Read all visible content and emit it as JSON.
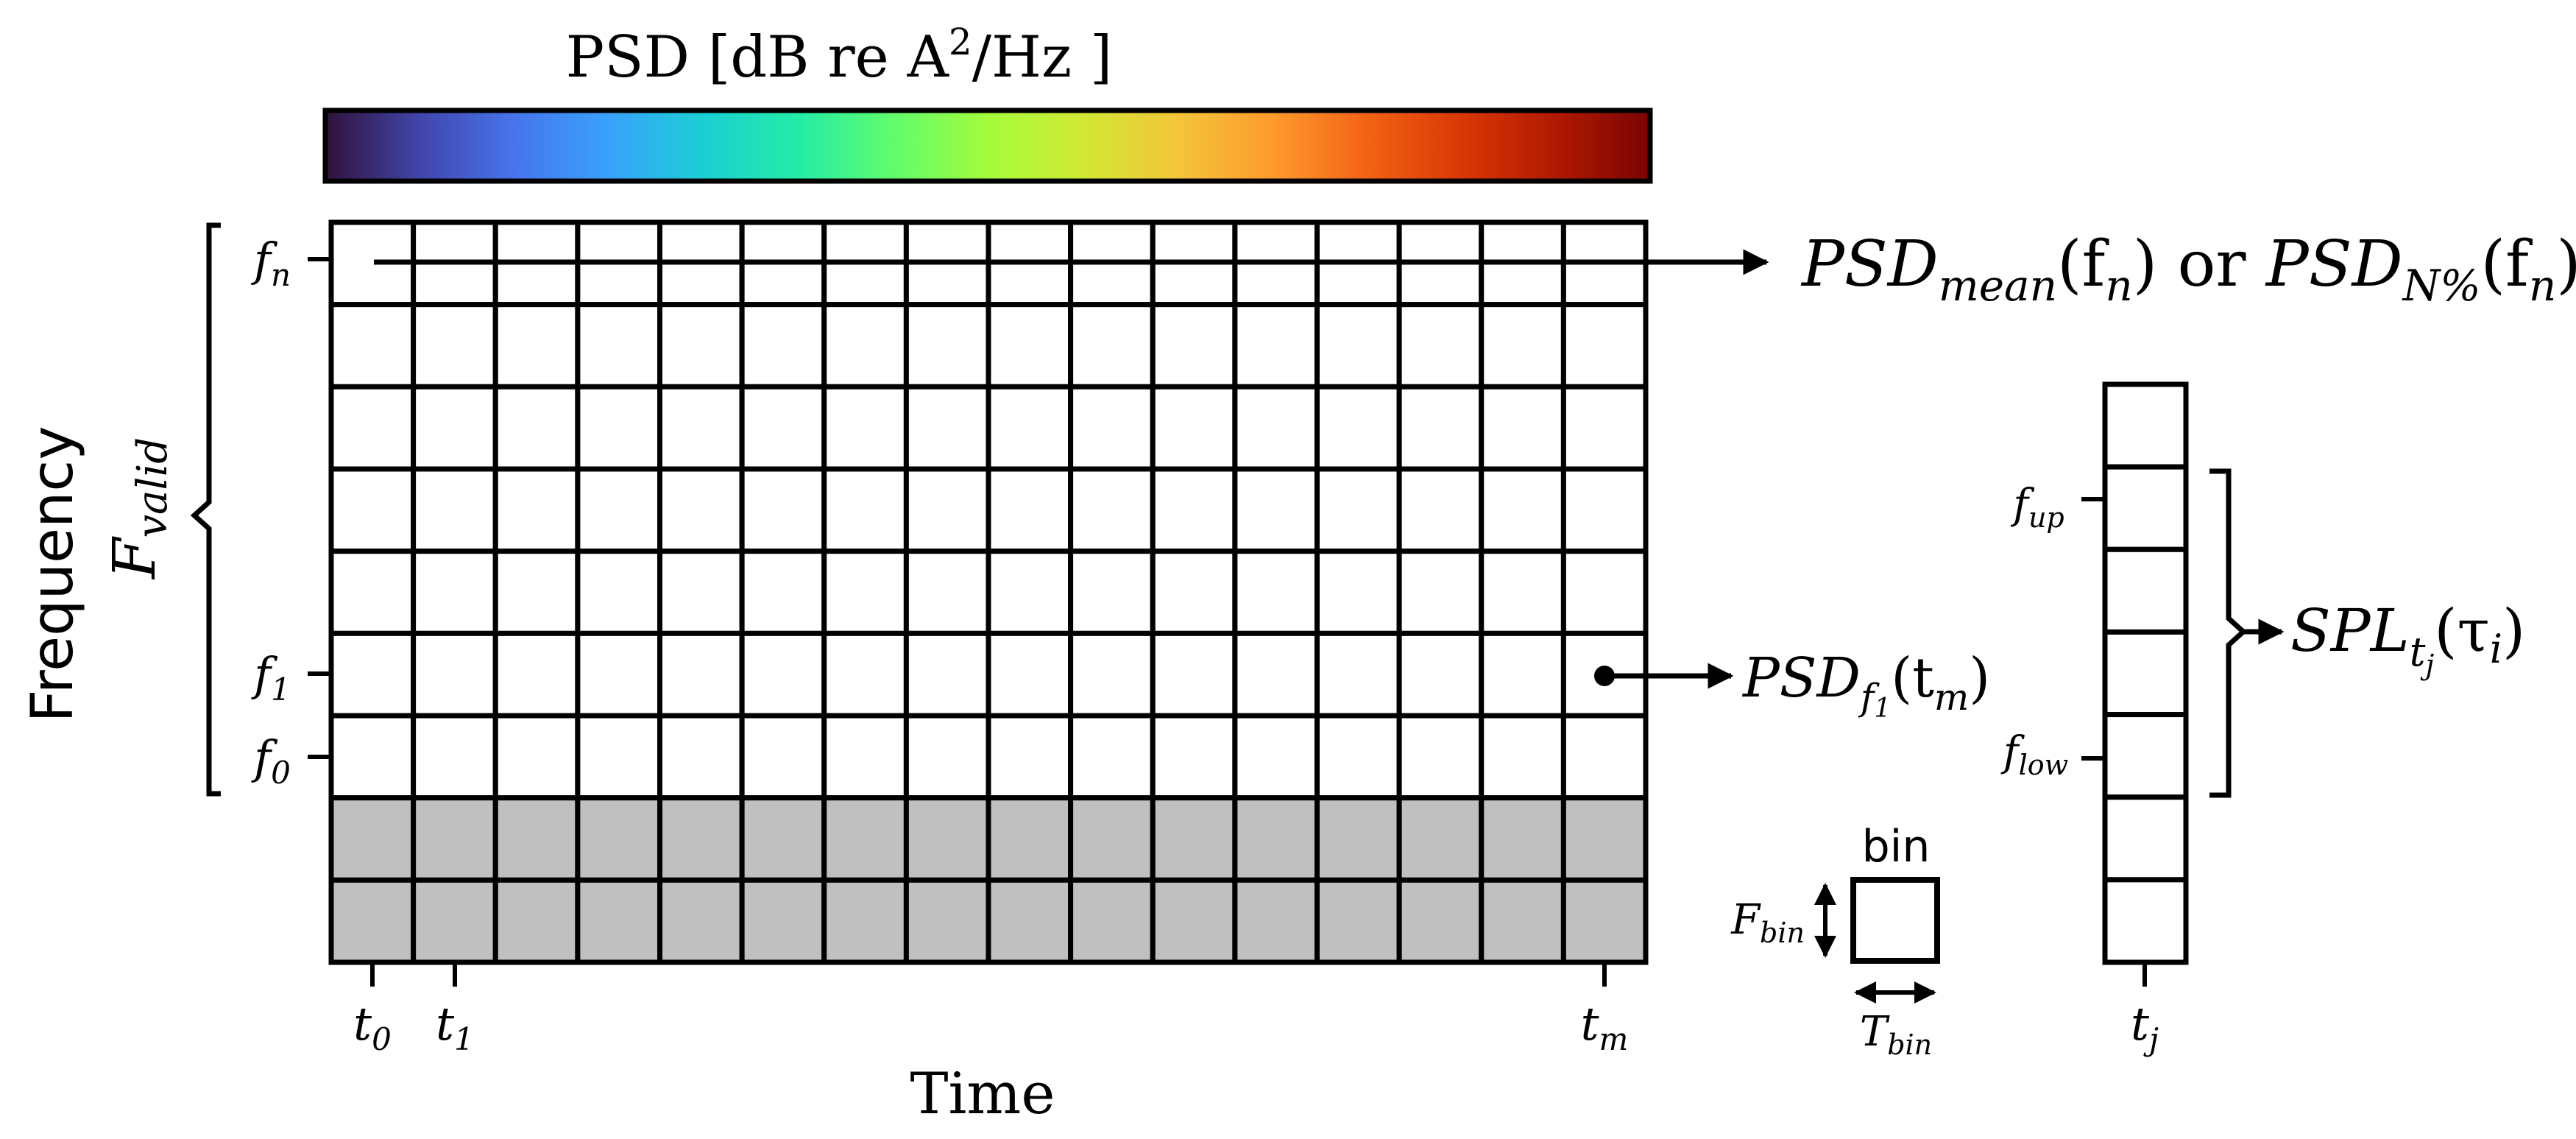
{
  "colorbar": {
    "label": "PSD [dB re A",
    "label_sup": "2",
    "label_tail": "/Hz ]",
    "colors": [
      "#30123b",
      "#4145ab",
      "#4675ed",
      "#39a2fc",
      "#1bcfd4",
      "#24eca6",
      "#61fc6c",
      "#a4fc3b",
      "#d1e834",
      "#f3c63a",
      "#fe9b2d",
      "#f36315",
      "#d93806",
      "#b11901",
      "#7a0403"
    ]
  },
  "spectrogram": {
    "columns": 16,
    "rows": 9,
    "gray_rows": 2,
    "gray_color": "#c0c0c0"
  },
  "axes": {
    "y_label": "Frequency",
    "x_label": "Time",
    "f_valid": {
      "main": "F",
      "sub": "valid"
    }
  },
  "freq_ticks": [
    {
      "main": "f",
      "sub": "n"
    },
    {
      "main": "f",
      "sub": "1"
    },
    {
      "main": "f",
      "sub": "0"
    }
  ],
  "time_ticks": [
    {
      "main": "t",
      "sub": "0"
    },
    {
      "main": "t",
      "sub": "1"
    },
    {
      "main": "t",
      "sub": "m"
    }
  ],
  "annotations": {
    "psd_mean": {
      "psd": "PSD",
      "sub1": "mean",
      "arg1": "(f",
      "arg1_sub": "n",
      "close": ")",
      "or": " or ",
      "sub2": "N%"
    },
    "psd_f1": {
      "psd": "PSD",
      "sub": "f",
      "subsub": "1",
      "arg": "(t",
      "arg_sub": "m",
      "close": ")"
    },
    "spl": {
      "main": "SPL",
      "sub": "t",
      "subsub": "j",
      "arg": "(τ",
      "arg_sub": "i",
      "close": ")"
    }
  },
  "bin_legend": {
    "title": "bin",
    "f_bin": {
      "main": "F",
      "sub": "bin"
    },
    "t_bin": {
      "main": "T",
      "sub": "bin"
    }
  },
  "column_diagram": {
    "cells": 7,
    "f_up": {
      "main": "f",
      "sub": "up"
    },
    "f_low": {
      "main": "f",
      "sub": "low"
    },
    "t_j": {
      "main": "t",
      "sub": "j"
    }
  }
}
